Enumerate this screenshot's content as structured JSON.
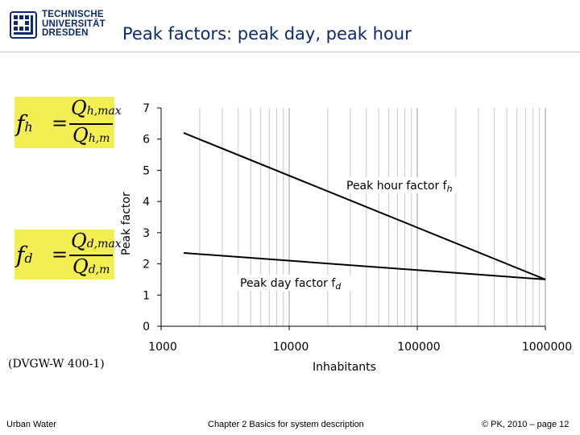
{
  "header": {
    "logo_lines": [
      "TECHNISCHE",
      "UNIVERSITÄT",
      "DRESDEN"
    ],
    "title": "Peak factors: peak day, peak hour"
  },
  "formulas": {
    "fh": {
      "lhs": "f",
      "lhs_sub": "h",
      "eq": "=",
      "num": "Q",
      "num_sub": "h,max",
      "den": "Q",
      "den_sub": "h,m"
    },
    "fd": {
      "lhs": "f",
      "lhs_sub": "d",
      "eq": "=",
      "num": "Q",
      "num_sub": "d,max",
      "den": "Q",
      "den_sub": "d,m"
    }
  },
  "source_note": "(DVGW-W 400-1)",
  "chart_data": {
    "type": "line",
    "x_scale": "log",
    "xlim": [
      1000,
      1000000
    ],
    "ylim": [
      0,
      7
    ],
    "x_ticks": [
      1000,
      10000,
      100000,
      1000000
    ],
    "x_tick_labels": [
      "1000",
      "10000",
      "100000",
      "1000000"
    ],
    "y_ticks": [
      0,
      1,
      2,
      3,
      4,
      5,
      6,
      7
    ],
    "y_tick_labels": [
      "0",
      "1",
      "2",
      "3",
      "4",
      "5",
      "6",
      "7"
    ],
    "xlabel": "Inhabitants",
    "ylabel": "Peak factor",
    "grid": "vertical log-minor lines",
    "series": [
      {
        "name": "Peak hour factor f",
        "name_sub": "h",
        "x": [
          1500,
          1000000
        ],
        "y": [
          6.2,
          1.5
        ]
      },
      {
        "name": "Peak day factor f",
        "name_sub": "d",
        "x": [
          1500,
          1000000
        ],
        "y": [
          2.35,
          1.5
        ]
      }
    ]
  },
  "footer": {
    "left": "Urban Water",
    "center": "Chapter 2 Basics for system description",
    "right": "© PK, 2010 – page 12"
  },
  "colors": {
    "brand": "#0b2a6f",
    "formula_bg": "#f3ee52"
  }
}
